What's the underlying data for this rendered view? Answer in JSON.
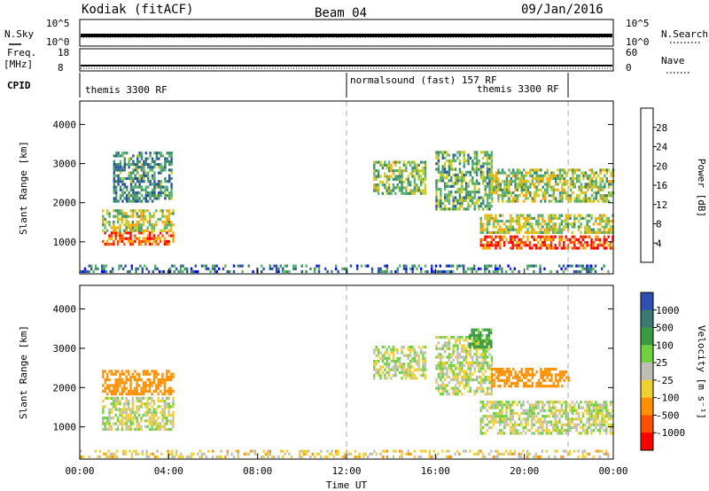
{
  "header": {
    "station": "Kodiak (fitACF)",
    "beam": "Beam 04",
    "date": "09/Jan/2016"
  },
  "labels": {
    "nsky": "N.Sky",
    "nsearch": "N.Search",
    "freq": "Freq.",
    "mhz": "[MHz]",
    "nave": "Nave",
    "cpid": "CPID",
    "slant_range_1": "Slant Range [km]",
    "slant_range_2": "Slant Range [km]",
    "time_ut": "Time UT",
    "power_title": "Power [dB]",
    "velocity_title": "Velocity [m s⁻¹]"
  },
  "strip_ticks": {
    "nsky_top": "10^5",
    "nsky_bot": "10^0",
    "nsearch_top": "10^5",
    "nsearch_bot": "10^0",
    "freq_top": "18",
    "freq_bot": "8",
    "nave_top": "60",
    "nave_bot": "0"
  },
  "cpid_segments": {
    "seg1": "themis 3300 RF",
    "seg2": "normalsound (fast) 157 RF",
    "seg3": "themis 3300 RF"
  },
  "colors": {
    "power_scale": [
      "#0000ff",
      "#2a4fa0",
      "#3a8a6a",
      "#59b06a",
      "#c8cc20",
      "#ffa500",
      "#ff5000",
      "#ff0000"
    ],
    "velocity_scale": [
      "#3050b0",
      "#3a7a70",
      "#3a9a40",
      "#70d040",
      "#bebeb6",
      "#f0d030",
      "#ff9000",
      "#ff5000",
      "#ff0000"
    ]
  },
  "chart_data": [
    {
      "type": "heatmap",
      "name": "power",
      "xlabel": "Time UT",
      "ylabel": "Slant Range [km]",
      "x_ticks": [
        "00:00",
        "04:00",
        "08:00",
        "12:00",
        "16:00",
        "20:00",
        "00:00"
      ],
      "y_ticks": [
        "1000",
        "2000",
        "3000",
        "4000"
      ],
      "xlim": [
        0,
        24
      ],
      "ylim": [
        180,
        4600
      ],
      "colorbar_label": "Power [dB]",
      "colorbar_ticks": [
        "4",
        "8",
        "12",
        "16",
        "20",
        "24",
        "28"
      ],
      "colorbar_range": [
        0,
        30
      ],
      "regions": [
        {
          "t": [
            1.0,
            4.2
          ],
          "r": [
            900,
            1200
          ],
          "level": 24
        },
        {
          "t": [
            1.0,
            4.2
          ],
          "r": [
            1250,
            1800
          ],
          "level": 16
        },
        {
          "t": [
            1.5,
            4.1
          ],
          "r": [
            2000,
            3300
          ],
          "level": 10
        },
        {
          "t": [
            13.2,
            15.5
          ],
          "r": [
            2200,
            3000
          ],
          "level": 14
        },
        {
          "t": [
            16.0,
            18.5
          ],
          "r": [
            1800,
            3300
          ],
          "level": 12
        },
        {
          "t": [
            18.0,
            24.0
          ],
          "r": [
            800,
            1100
          ],
          "level": 26
        },
        {
          "t": [
            18.0,
            24.0
          ],
          "r": [
            1200,
            1700
          ],
          "level": 16
        },
        {
          "t": [
            18.5,
            24.0
          ],
          "r": [
            2000,
            2800
          ],
          "level": 15
        },
        {
          "t": [
            0.0,
            24.0
          ],
          "r": [
            200,
            400
          ],
          "level": 8
        }
      ]
    },
    {
      "type": "heatmap",
      "name": "velocity",
      "xlabel": "Time UT",
      "ylabel": "Slant Range [km]",
      "x_ticks": [
        "00:00",
        "04:00",
        "08:00",
        "12:00",
        "16:00",
        "20:00",
        "00:00"
      ],
      "y_ticks": [
        "1000",
        "2000",
        "3000",
        "4000"
      ],
      "xlim": [
        0,
        24
      ],
      "ylim": [
        180,
        4600
      ],
      "colorbar_label": "Velocity [m s⁻¹]",
      "colorbar_ticks": [
        "1000",
        "500",
        "100",
        "25",
        "-25",
        "-100",
        "-500",
        "-1000"
      ],
      "colorbar_range": [
        -1200,
        1200
      ],
      "regions": [
        {
          "t": [
            1.0,
            4.2
          ],
          "r": [
            900,
            1700
          ],
          "level": 0
        },
        {
          "t": [
            1.0,
            4.2
          ],
          "r": [
            1800,
            2400
          ],
          "level": -200
        },
        {
          "t": [
            13.2,
            15.5
          ],
          "r": [
            2200,
            3000
          ],
          "level": 0
        },
        {
          "t": [
            16.0,
            18.5
          ],
          "r": [
            1800,
            3300
          ],
          "level": 0
        },
        {
          "t": [
            18.0,
            24.0
          ],
          "r": [
            800,
            1600
          ],
          "level": 0
        },
        {
          "t": [
            18.5,
            22.0
          ],
          "r": [
            2000,
            2500
          ],
          "level": -400
        },
        {
          "t": [
            17.5,
            18.5
          ],
          "r": [
            3000,
            3500
          ],
          "level": 150
        },
        {
          "t": [
            0.0,
            24.0
          ],
          "r": [
            200,
            400
          ],
          "level": -50
        }
      ]
    }
  ]
}
